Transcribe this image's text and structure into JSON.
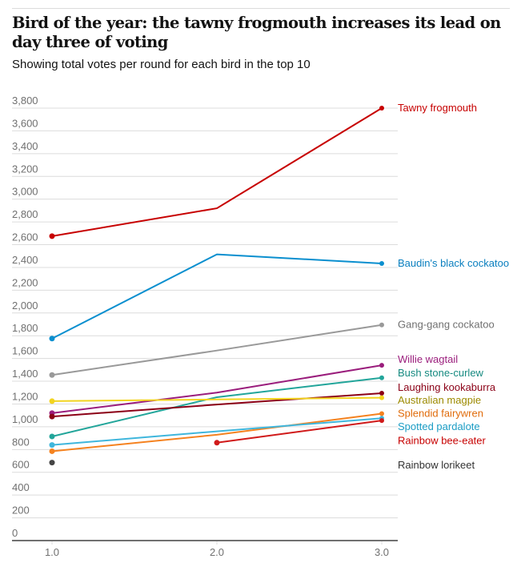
{
  "header": {
    "title": "Bird of the year: the tawny frogmouth increases its lead on day three of voting",
    "subtitle": "Showing total votes per round for each bird in the top 10"
  },
  "chart_data": {
    "type": "line",
    "title": "Bird of the year: the tawny frogmouth increases its lead on day three of voting",
    "subtitle": "Showing total votes per round for each bird in the top 10",
    "xlabel": "",
    "ylabel": "",
    "x": [
      1.0,
      2.0,
      3.0
    ],
    "x_tick_labels": [
      "1.0",
      "2.0",
      "3.0"
    ],
    "ylim": [
      0,
      3800
    ],
    "y_ticks": [
      0,
      200,
      400,
      600,
      800,
      1000,
      1200,
      1400,
      1600,
      1800,
      2000,
      2200,
      2400,
      2600,
      2800,
      3000,
      3200,
      3400,
      3600,
      3800
    ],
    "y_tick_labels": [
      "0",
      "200",
      "400",
      "600",
      "800",
      "1,000",
      "1,200",
      "1,400",
      "1,600",
      "1,800",
      "2,000",
      "2,200",
      "2,400",
      "2,600",
      "2,800",
      "3,000",
      "3,200",
      "3,400",
      "3,600",
      "3,800"
    ],
    "grid": true,
    "legend": "direct-labels-right",
    "series": [
      {
        "name": "Tawny frogmouth",
        "color": "#c70000",
        "values": [
          2675,
          2920,
          3800
        ]
      },
      {
        "name": "Baudin's black cockatoo",
        "color": "#0a8fcf",
        "values": [
          1775,
          2515,
          2435
        ]
      },
      {
        "name": "Gang-gang cockatoo",
        "color": "#999999",
        "values": [
          1455,
          1670,
          1895
        ]
      },
      {
        "name": "Willie wagtail",
        "color": "#9a1d7c",
        "values": [
          1120,
          1300,
          1540
        ]
      },
      {
        "name": "Bush stone-curlew",
        "color": "#22a59a",
        "values": [
          915,
          1260,
          1430
        ]
      },
      {
        "name": "Laughing kookaburra",
        "color": "#8b0016",
        "values": [
          1090,
          1195,
          1295
        ]
      },
      {
        "name": "Australian magpie",
        "color": "#f2d41f",
        "values": [
          1225,
          1240,
          1255
        ]
      },
      {
        "name": "Splendid fairywren",
        "color": "#f5821f",
        "values": [
          785,
          930,
          1115
        ]
      },
      {
        "name": "Spotted pardalote",
        "color": "#3fb6dc",
        "values": [
          840,
          960,
          1075
        ]
      },
      {
        "name": "Rainbow bee-eater",
        "color": "#d01a1a",
        "values": [
          null,
          860,
          1055
        ]
      },
      {
        "name": "Rainbow lorikeet",
        "color": "#444444",
        "values": [
          685,
          null,
          null
        ]
      }
    ],
    "series_label_colors": {
      "Tawny frogmouth": "#c70000",
      "Baudin's black cockatoo": "#0a7fbf",
      "Gang-gang cockatoo": "#707070",
      "Willie wagtail": "#9a1d7c",
      "Bush stone-curlew": "#168a80",
      "Laughing kookaburra": "#8b0016",
      "Australian magpie": "#9c8a00",
      "Splendid fairywren": "#e06b0a",
      "Spotted pardalote": "#1a9cc4",
      "Rainbow bee-eater": "#c70000",
      "Rainbow lorikeet": "#333333"
    },
    "label_positions_votes": {
      "Tawny frogmouth": 3800,
      "Baudin's black cockatoo": 2435,
      "Gang-gang cockatoo": 1895,
      "Willie wagtail": 1590,
      "Bush stone-curlew": 1470,
      "Laughing kookaburra": 1345,
      "Australian magpie": 1230,
      "Splendid fairywren": 1115,
      "Spotted pardalote": 1000,
      "Rainbow bee-eater": 875,
      "Rainbow lorikeet": 660
    }
  }
}
